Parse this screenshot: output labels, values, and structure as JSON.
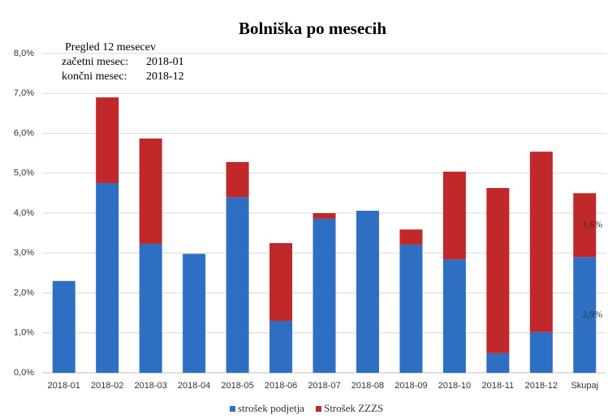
{
  "chart_data": {
    "type": "stacked_bar",
    "title": "Bolniška po mesecih",
    "annotations": [
      "Pregled 12 mesecev",
      "začetni mesec:",
      "2018-01",
      "končni mesec:",
      "2018-12"
    ],
    "categories": [
      "2018-01",
      "2018-02",
      "2018-03",
      "2018-04",
      "2018-05",
      "2018-06",
      "2018-07",
      "2018-08",
      "2018-09",
      "2018-10",
      "2018-11",
      "2018-12",
      "Skupaj"
    ],
    "series": [
      {
        "name": "strošek podjetja",
        "color": "#2e6fc4",
        "values": [
          2.3,
          4.75,
          3.23,
          2.98,
          4.4,
          1.3,
          3.86,
          4.06,
          3.21,
          2.84,
          0.49,
          1.02,
          2.9
        ],
        "value_labels": [
          null,
          null,
          null,
          null,
          null,
          null,
          null,
          null,
          null,
          null,
          null,
          null,
          "2,9%"
        ]
      },
      {
        "name": "Strošek ZZZS",
        "color": "#c0282a",
        "values": [
          0,
          2.15,
          2.64,
          0,
          0.88,
          1.95,
          0.14,
          0,
          0.38,
          2.2,
          4.14,
          4.52,
          1.6
        ],
        "value_labels": [
          null,
          null,
          null,
          null,
          null,
          null,
          null,
          null,
          null,
          null,
          null,
          null,
          "1,6%"
        ]
      }
    ],
    "ylim": [
      0,
      8
    ],
    "yticks": [
      {
        "value": 0,
        "label": "0,0%"
      },
      {
        "value": 1,
        "label": "1,0%"
      },
      {
        "value": 2,
        "label": "2,0%"
      },
      {
        "value": 3,
        "label": "3,0%"
      },
      {
        "value": 4,
        "label": "4,0%"
      },
      {
        "value": 5,
        "label": "5,0%"
      },
      {
        "value": 6,
        "label": "6,0%"
      },
      {
        "value": 7,
        "label": "7,0%"
      },
      {
        "value": 8,
        "label": "8,0%"
      }
    ],
    "grid": true
  }
}
